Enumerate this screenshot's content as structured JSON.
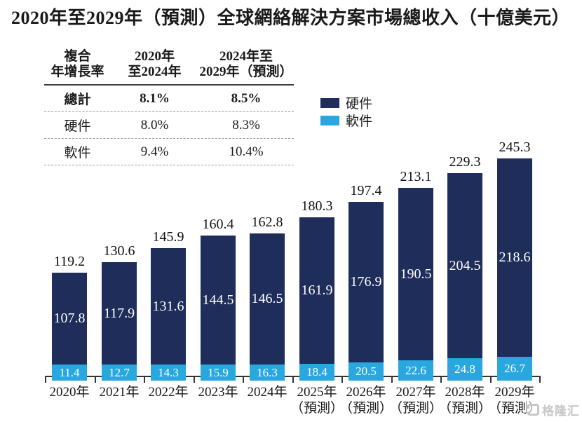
{
  "title": "2020年至2029年（預測）全球網絡解決方案市場總收入（十億美元）",
  "cagr_table": {
    "header": {
      "col1_line1": "複合",
      "col1_line2": "年增長率",
      "col2_line1": "2020年",
      "col2_line2": "至2024年",
      "col3_line1": "2024年至",
      "col3_line2": "2029年（預測）"
    },
    "rows": [
      {
        "label": "總計",
        "period1": "8.1%",
        "period2": "8.5%"
      },
      {
        "label": "硬件",
        "period1": "8.0%",
        "period2": "8.3%"
      },
      {
        "label": "軟件",
        "period1": "9.4%",
        "period2": "10.4%"
      }
    ]
  },
  "legend": [
    {
      "label": "硬件",
      "color": "#1f2d5a"
    },
    {
      "label": "軟件",
      "color": "#29a8e0"
    }
  ],
  "watermark_text": "格隆汇",
  "colors": {
    "hardware": "#1f2d5a",
    "software": "#29a8e0",
    "axis": "#333333"
  },
  "chart_data": {
    "type": "bar",
    "stacked": true,
    "title": "2020年至2029年（預測）全球網絡解決方案市場總收入（十億美元）",
    "ylabel": "十億美元",
    "xlabel": "",
    "grid": false,
    "legend_position": "upper-right",
    "categories": [
      "2020年",
      "2021年",
      "2022年",
      "2023年",
      "2024年",
      "2025年",
      "2026年",
      "2027年",
      "2028年",
      "2029年"
    ],
    "forecast_suffix": "（預測）",
    "forecast_from_index": 5,
    "series": [
      {
        "name": "硬件",
        "color": "#1f2d5a",
        "values": [
          107.8,
          117.9,
          131.6,
          144.5,
          146.5,
          161.9,
          176.9,
          190.5,
          204.5,
          218.6
        ]
      },
      {
        "name": "軟件",
        "color": "#29a8e0",
        "values": [
          11.4,
          12.7,
          14.3,
          15.9,
          16.3,
          18.4,
          20.5,
          22.6,
          24.8,
          26.7
        ]
      }
    ],
    "totals": [
      119.2,
      130.6,
      145.9,
      160.4,
      162.8,
      180.3,
      197.4,
      213.1,
      229.3,
      245.3
    ],
    "ylim": [
      0,
      260
    ]
  }
}
